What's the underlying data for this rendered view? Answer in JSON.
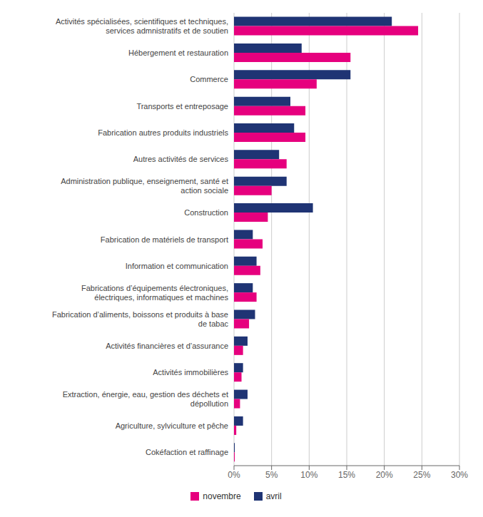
{
  "chart_data": {
    "type": "bar",
    "orientation": "horizontal",
    "categories": [
      "Activités spécialisées, scientifiques et techniques,\nservices admnistratifs et de soutien",
      "Hébergement et restauration",
      "Commerce",
      "Transports et entreposage",
      "Fabrication autres produits industriels",
      "Autres activités de services",
      "Administration publique, enseignement, santé et\naction sociale",
      "Construction",
      "Fabrication de matériels de transport",
      "Information et communication",
      "Fabrications d’équipements électroniques,\nélectriques, informatiques et machines",
      "Fabrication d’aliments, boissons et produits à base\nde tabac",
      "Activités financières et d’assurance",
      "Activités immobilières",
      "Extraction, énergie, eau, gestion des déchets et\ndépollution",
      "Agriculture, sylviculture et pêche",
      "Cokéfaction et raffinage"
    ],
    "series": [
      {
        "name": "novembre",
        "color": "#e6007e",
        "values": [
          24.5,
          15.5,
          11.0,
          9.5,
          9.5,
          7.0,
          5.0,
          4.5,
          3.8,
          3.5,
          3.0,
          2.0,
          1.2,
          1.0,
          0.8,
          0.3,
          0.1
        ]
      },
      {
        "name": "avril",
        "color": "#1f3474",
        "values": [
          21.0,
          9.0,
          15.5,
          7.5,
          8.0,
          6.0,
          7.0,
          10.5,
          2.5,
          3.0,
          2.5,
          2.8,
          1.8,
          1.2,
          1.8,
          1.2,
          0.1
        ]
      }
    ],
    "xlim": [
      0,
      30
    ],
    "xticks": [
      {
        "value": 0,
        "label": "0%"
      },
      {
        "value": 5,
        "label": "5%"
      },
      {
        "value": 10,
        "label": "10%"
      },
      {
        "value": 15,
        "label": "15%"
      },
      {
        "value": 20,
        "label": "20%"
      },
      {
        "value": 25,
        "label": "25%"
      },
      {
        "value": 30,
        "label": "30%"
      }
    ],
    "grid": true,
    "legend": "bottom"
  }
}
